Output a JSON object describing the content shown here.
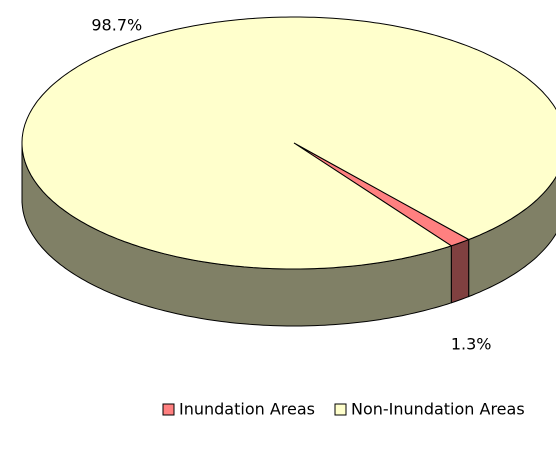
{
  "chart_data": {
    "type": "pie",
    "categories": [
      "Inundation Areas",
      "Non-Inundation Areas"
    ],
    "values": [
      1.3,
      98.7
    ],
    "value_labels": [
      "1.3%",
      "98.7%"
    ],
    "colors": [
      "#ff8080",
      "#ffffcc"
    ],
    "legend": "bottom"
  }
}
